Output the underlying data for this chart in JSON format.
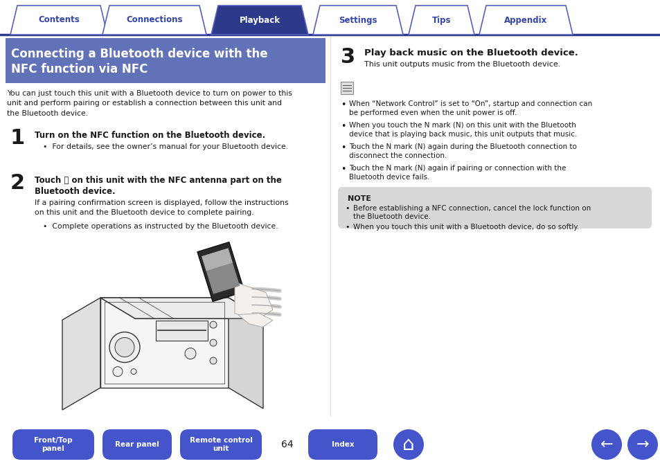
{
  "bg_color": "#ffffff",
  "tab_color_active": "#2d3a8c",
  "tab_color_inactive": "#ffffff",
  "tab_border_color": "#5560bb",
  "tab_text_active": "#ffffff",
  "tab_text_inactive": "#3344aa",
  "tabs": [
    "Contents",
    "Connections",
    "Playback",
    "Settings",
    "Tips",
    "Appendix"
  ],
  "active_tab": 2,
  "header_bg": "#6272b8",
  "header_text_line1": "Connecting a Bluetooth device with the",
  "header_text_line2": "NFC function via NFC",
  "header_text_color": "#ffffff",
  "body_text_color": "#1a1a1a",
  "dark_blue": "#2d3a8c",
  "note_bg": "#d8d8d8",
  "bottom_btn_color": "#4455cc",
  "bottom_btn_text": "#ffffff",
  "page_number": "64",
  "intro_text": "You can just touch this unit with a Bluetooth device to turn on power to this\nunit and perform pairing or establish a connection between this unit and\nthe Bluetooth device.",
  "step1_num": "1",
  "step1_bold": "Turn on the NFC function on the Bluetooth device.",
  "step1_bullet": "For details, see the owner’s manual for your Bluetooth device.",
  "step2_num": "2",
  "step2_bold1": "Touch ",
  "step2_bold2": " on this unit with the NFC antenna part on the",
  "step2_bold3": "Bluetooth device.",
  "step2_body": "If a pairing confirmation screen is displayed, follow the instructions\non this unit and the Bluetooth device to complete pairing.",
  "step2_bullet": "Complete operations as instructed by the Bluetooth device.",
  "step3_num": "3",
  "step3_bold": "Play back music on the Bluetooth device.",
  "step3_body": "This unit outputs music from the Bluetooth device.",
  "right_bullets": [
    "When “Network Control” is set to “On”, startup and connection can be performed\neven when the unit power is off.",
    "When you touch the N mark (🛡) on this unit with the Bluetooth device that is\nplaying back music, this unit outputs that music.",
    "Touch the N mark (🛡) again during the Bluetooth connection to disconnect the\nconnection.",
    "Touch the N mark (🛡) again if pairing or connection with the Bluetooth device\nfails."
  ],
  "right_bullets_clean": [
    "When “Network Control” is set to “On”, startup and connection can be performed even when the unit power is off.",
    "When you touch the N mark (N) on this unit with the Bluetooth device that is playing back music, this unit outputs that music.",
    "Touch the N mark (N) again during the Bluetooth connection to disconnect the connection.",
    "Touch the N mark (N) again if pairing or connection with the Bluetooth device fails."
  ],
  "note_label": "NOTE",
  "note_bullets_clean": [
    "Before establishing a NFC connection, cancel the lock function on the Bluetooth device.",
    "When you touch this unit with a Bluetooth device, do so softly."
  ],
  "bottom_buttons": [
    "Front/Top\npanel",
    "Rear panel",
    "Remote control\nunit",
    "Index"
  ],
  "figsize": [
    9.54,
    6.73
  ],
  "dpi": 100
}
